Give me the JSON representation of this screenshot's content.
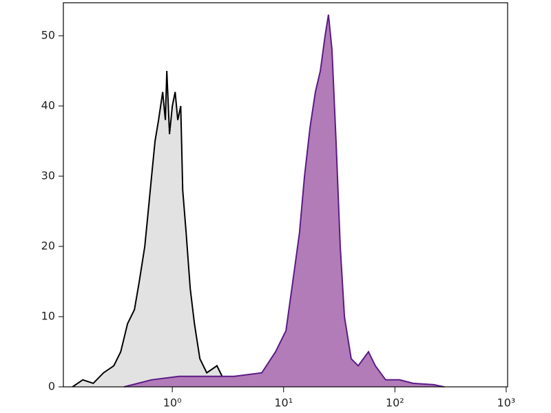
{
  "chart_data": {
    "type": "histogram-overlay",
    "xscale": "log",
    "xlim": [
      0.105,
      1030
    ],
    "ylim": [
      0,
      54.7
    ],
    "xticks": [
      {
        "value": 1,
        "label": "10⁰"
      },
      {
        "value": 10,
        "label": "10¹"
      },
      {
        "value": 100,
        "label": "10²"
      },
      {
        "value": 1000,
        "label": "10³"
      }
    ],
    "yticks": [
      0,
      10,
      20,
      30,
      40,
      50
    ],
    "series": [
      {
        "color": "#000000",
        "fill": "#e2e2e2",
        "x": [
          0.127,
          0.157,
          0.195,
          0.241,
          0.298,
          0.344,
          0.396,
          0.457,
          0.505,
          0.566,
          0.608,
          0.652,
          0.7,
          0.752,
          0.819,
          0.867,
          0.893,
          0.944,
          1,
          1.06,
          1.12,
          1.19,
          1.24,
          1.33,
          1.45,
          1.58,
          1.77,
          2.04,
          2.52,
          3.12
        ],
        "values": [
          0,
          1,
          0.5,
          2,
          3,
          5,
          9,
          11,
          15,
          20,
          25,
          30,
          35,
          38,
          42,
          38,
          45,
          36,
          40,
          42,
          38,
          40,
          28,
          22,
          14,
          9,
          4,
          2,
          3,
          0
        ]
      },
      {
        "color": "#5a1a86",
        "fill": "#b27cb8",
        "x": [
          0.369,
          0.652,
          1.15,
          2.04,
          3.6,
          6.37,
          8.47,
          10.5,
          12.1,
          13.9,
          15.4,
          17.3,
          19.3,
          21.4,
          23.6,
          25.3,
          27.2,
          29.6,
          32.3,
          35.2,
          40.5,
          46.8,
          57.9,
          66.7,
          82.6,
          110,
          146,
          224,
          277
        ],
        "values": [
          0,
          1,
          1.5,
          1.5,
          1.5,
          2,
          5,
          8,
          15,
          22,
          30,
          37,
          42,
          45,
          50,
          53,
          48,
          35,
          20,
          10,
          4,
          3,
          5,
          3,
          1,
          1,
          0.5,
          0.3,
          0
        ]
      }
    ]
  }
}
